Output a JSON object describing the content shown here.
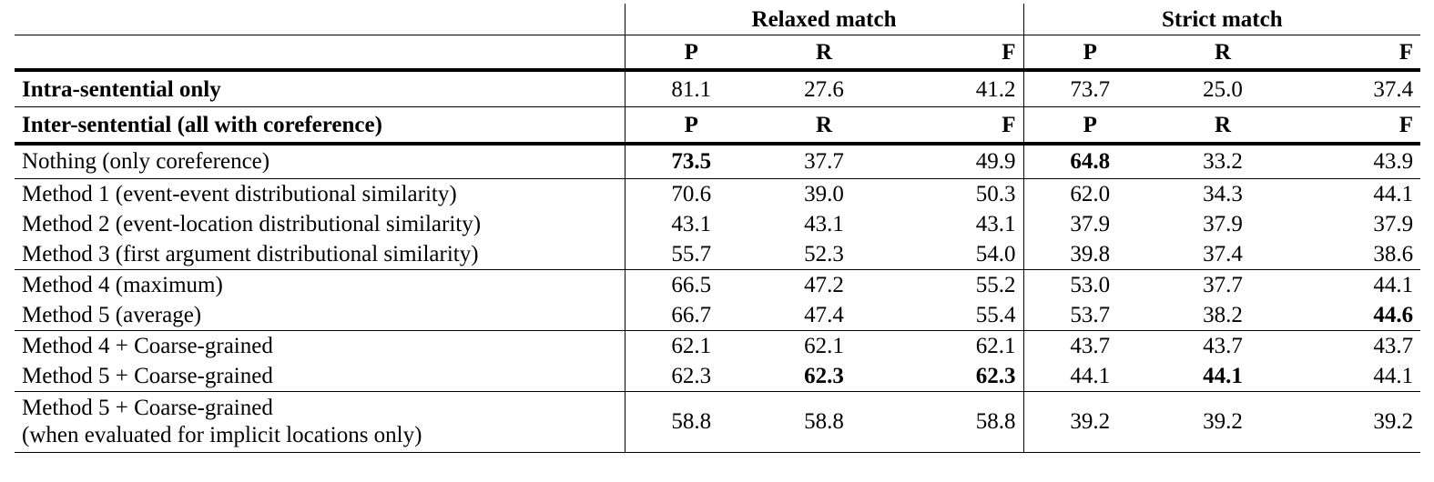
{
  "header": {
    "relaxed": "Relaxed match",
    "strict": "Strict match",
    "cols": [
      "P",
      "R",
      "F",
      "P",
      "R",
      "F"
    ]
  },
  "intra": {
    "label": "Intra-sentential only",
    "values": [
      "81.1",
      "27.6",
      "41.2",
      "73.7",
      "25.0",
      "37.4"
    ]
  },
  "inter": {
    "label": "Inter-sentential (all with coreference)",
    "cols": [
      "P",
      "R",
      "F",
      "P",
      "R",
      "F"
    ]
  },
  "rows": [
    {
      "label": "Nothing (only coreference)",
      "values": [
        "73.5",
        "37.7",
        "49.9",
        "64.8",
        "33.2",
        "43.9"
      ]
    },
    {
      "label": "Method 1 (event-event distributional similarity)",
      "values": [
        "70.6",
        "39.0",
        "50.3",
        "62.0",
        "34.3",
        "44.1"
      ]
    },
    {
      "label": "Method 2 (event-location distributional similarity)",
      "values": [
        "43.1",
        "43.1",
        "43.1",
        "37.9",
        "37.9",
        "37.9"
      ]
    },
    {
      "label": "Method 3 (first argument distributional similarity)",
      "values": [
        "55.7",
        "52.3",
        "54.0",
        "39.8",
        "37.4",
        "38.6"
      ]
    },
    {
      "label": "Method 4 (maximum)",
      "values": [
        "66.5",
        "47.2",
        "55.2",
        "53.0",
        "37.7",
        "44.1"
      ]
    },
    {
      "label": "Method 5 (average)",
      "values": [
        "66.7",
        "47.4",
        "55.4",
        "53.7",
        "38.2",
        "44.6"
      ]
    },
    {
      "label": "Method 4 + Coarse-grained",
      "values": [
        "62.1",
        "62.1",
        "62.1",
        "43.7",
        "43.7",
        "43.7"
      ]
    },
    {
      "label": "Method 5 + Coarse-grained",
      "values": [
        "62.3",
        "62.3",
        "62.3",
        "44.1",
        "44.1",
        "44.1"
      ]
    },
    {
      "label_line1": "Method 5 + Coarse-grained",
      "label_line2": "(when evaluated for implicit locations only)",
      "values": [
        "58.8",
        "58.8",
        "58.8",
        "39.2",
        "39.2",
        "39.2"
      ]
    }
  ]
}
